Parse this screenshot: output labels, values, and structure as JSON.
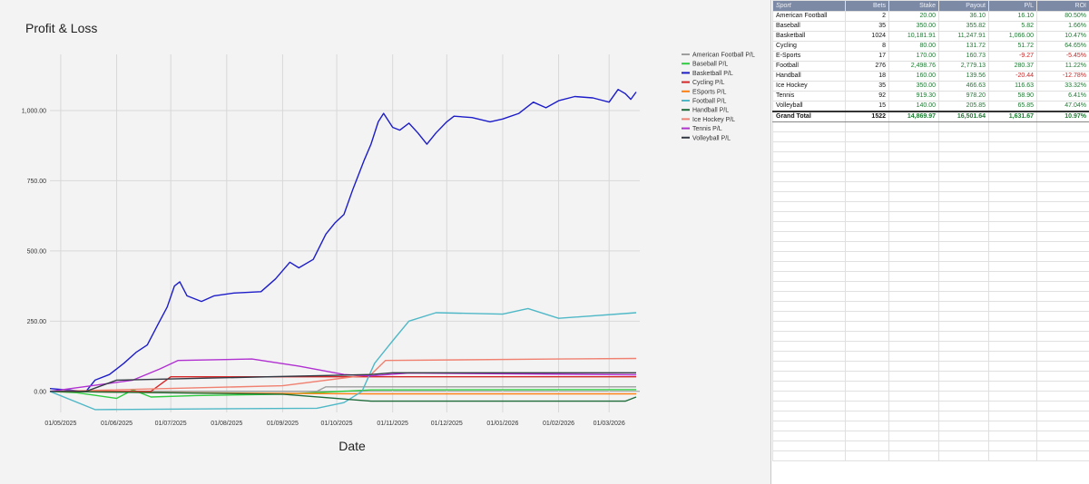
{
  "chart_data": {
    "type": "line",
    "title": "Profit & Loss",
    "xlabel": "Date",
    "ylabel": "",
    "x_start": "2025-04-25",
    "x_end": "2026-03-18",
    "ylim": [
      -75,
      1200
    ],
    "yticks": [
      0,
      250,
      500,
      750,
      1000
    ],
    "ytick_labels": [
      "0.00",
      "250.00",
      "500.00",
      "750.00",
      "1,000.00"
    ],
    "xticks": [
      "2025-05-01",
      "2025-06-01",
      "2025-07-01",
      "2025-08-01",
      "2025-09-01",
      "2025-10-01",
      "2025-11-01",
      "2025-12-01",
      "2026-01-01",
      "2026-02-01",
      "2026-03-01"
    ],
    "xtick_labels": [
      "01/05/2025",
      "01/06/2025",
      "01/07/2025",
      "01/08/2025",
      "01/09/2025",
      "01/10/2025",
      "01/11/2025",
      "01/12/2025",
      "01/01/2026",
      "01/02/2026",
      "01/03/2026"
    ],
    "grid": true,
    "legend_position": "right",
    "series": [
      {
        "name": "American Football P/L",
        "color": "#9e9e9e",
        "points": [
          [
            "2025-04-25",
            0
          ],
          [
            "2025-09-20",
            0
          ],
          [
            "2025-09-25",
            16
          ],
          [
            "2026-03-16",
            16
          ]
        ]
      },
      {
        "name": "Baseball P/L",
        "color": "#2ecc40",
        "points": [
          [
            "2025-04-25",
            0
          ],
          [
            "2025-05-10",
            -5
          ],
          [
            "2025-06-01",
            -25
          ],
          [
            "2025-06-10",
            5
          ],
          [
            "2025-06-20",
            -20
          ],
          [
            "2025-07-15",
            -15
          ],
          [
            "2025-09-01",
            -10
          ],
          [
            "2025-10-20",
            5
          ],
          [
            "2026-03-16",
            6
          ]
        ]
      },
      {
        "name": "Basketball P/L",
        "color": "#1c1cc8",
        "points": [
          [
            "2025-04-25",
            10
          ],
          [
            "2025-05-15",
            0
          ],
          [
            "2025-05-20",
            40
          ],
          [
            "2025-05-28",
            60
          ],
          [
            "2025-06-05",
            100
          ],
          [
            "2025-06-12",
            140
          ],
          [
            "2025-06-18",
            165
          ],
          [
            "2025-06-24",
            240
          ],
          [
            "2025-06-29",
            300
          ],
          [
            "2025-07-03",
            375
          ],
          [
            "2025-07-06",
            390
          ],
          [
            "2025-07-10",
            340
          ],
          [
            "2025-07-18",
            320
          ],
          [
            "2025-07-25",
            340
          ],
          [
            "2025-08-05",
            350
          ],
          [
            "2025-08-20",
            355
          ],
          [
            "2025-08-28",
            400
          ],
          [
            "2025-09-05",
            460
          ],
          [
            "2025-09-10",
            440
          ],
          [
            "2025-09-18",
            470
          ],
          [
            "2025-09-25",
            560
          ],
          [
            "2025-09-30",
            600
          ],
          [
            "2025-10-05",
            630
          ],
          [
            "2025-10-10",
            720
          ],
          [
            "2025-10-16",
            820
          ],
          [
            "2025-10-20",
            880
          ],
          [
            "2025-10-24",
            960
          ],
          [
            "2025-10-27",
            990
          ],
          [
            "2025-11-01",
            940
          ],
          [
            "2025-11-05",
            930
          ],
          [
            "2025-11-10",
            955
          ],
          [
            "2025-11-15",
            920
          ],
          [
            "2025-11-20",
            880
          ],
          [
            "2025-11-25",
            920
          ],
          [
            "2025-12-01",
            960
          ],
          [
            "2025-12-05",
            980
          ],
          [
            "2025-12-15",
            975
          ],
          [
            "2025-12-25",
            960
          ],
          [
            "2026-01-01",
            970
          ],
          [
            "2026-01-10",
            990
          ],
          [
            "2026-01-18",
            1030
          ],
          [
            "2026-01-25",
            1010
          ],
          [
            "2026-02-01",
            1035
          ],
          [
            "2026-02-10",
            1050
          ],
          [
            "2026-02-20",
            1045
          ],
          [
            "2026-03-01",
            1030
          ],
          [
            "2026-03-06",
            1075
          ],
          [
            "2026-03-10",
            1060
          ],
          [
            "2026-03-13",
            1040
          ],
          [
            "2026-03-16",
            1066
          ]
        ]
      },
      {
        "name": "Cycling P/L",
        "color": "#d62728",
        "points": [
          [
            "2025-04-25",
            0
          ],
          [
            "2025-06-20",
            0
          ],
          [
            "2025-07-01",
            52
          ],
          [
            "2026-03-16",
            52
          ]
        ]
      },
      {
        "name": "ESports P/L",
        "color": "#ff7f0e",
        "points": [
          [
            "2025-04-25",
            0
          ],
          [
            "2025-07-01",
            -5
          ],
          [
            "2025-10-20",
            -9
          ],
          [
            "2026-03-16",
            -9
          ]
        ]
      },
      {
        "name": "Football P/L",
        "color": "#4fb8c7",
        "points": [
          [
            "2025-04-25",
            0
          ],
          [
            "2025-05-20",
            -65
          ],
          [
            "2025-09-20",
            -60
          ],
          [
            "2025-10-05",
            -40
          ],
          [
            "2025-10-15",
            0
          ],
          [
            "2025-10-22",
            100
          ],
          [
            "2025-11-01",
            180
          ],
          [
            "2025-11-10",
            250
          ],
          [
            "2025-11-25",
            280
          ],
          [
            "2026-01-01",
            275
          ],
          [
            "2026-01-15",
            295
          ],
          [
            "2026-02-01",
            260
          ],
          [
            "2026-03-16",
            280
          ]
        ]
      },
      {
        "name": "Handball P/L",
        "color": "#1e6b3a",
        "points": [
          [
            "2025-04-25",
            0
          ],
          [
            "2025-09-01",
            -10
          ],
          [
            "2025-10-20",
            -35
          ],
          [
            "2026-03-10",
            -35
          ],
          [
            "2026-03-16",
            -20
          ]
        ]
      },
      {
        "name": "Ice Hockey P/L",
        "color": "#f08070",
        "points": [
          [
            "2025-04-25",
            0
          ],
          [
            "2025-09-01",
            20
          ],
          [
            "2025-10-20",
            60
          ],
          [
            "2025-10-28",
            110
          ],
          [
            "2026-02-01",
            115
          ],
          [
            "2026-03-16",
            117
          ]
        ]
      },
      {
        "name": "Tennis P/L",
        "color": "#b030d0",
        "points": [
          [
            "2025-04-25",
            0
          ],
          [
            "2025-06-10",
            40
          ],
          [
            "2025-06-25",
            80
          ],
          [
            "2025-07-05",
            110
          ],
          [
            "2025-08-15",
            115
          ],
          [
            "2025-09-10",
            90
          ],
          [
            "2025-10-05",
            60
          ],
          [
            "2025-10-20",
            55
          ],
          [
            "2025-11-10",
            65
          ],
          [
            "2026-03-16",
            59
          ]
        ]
      },
      {
        "name": "Volleyball P/L",
        "color": "#333a44",
        "points": [
          [
            "2025-04-25",
            0
          ],
          [
            "2025-05-15",
            0
          ],
          [
            "2025-06-01",
            40
          ],
          [
            "2025-10-20",
            60
          ],
          [
            "2025-11-01",
            66
          ],
          [
            "2026-03-16",
            66
          ]
        ]
      }
    ]
  },
  "table": {
    "headers": [
      "Sport",
      "Bets",
      "Stake",
      "Payout",
      "P/L",
      "ROI"
    ],
    "rows": [
      [
        "American Football",
        "2",
        "20.00",
        "36.10",
        "16.10",
        "80.50%"
      ],
      [
        "Baseball",
        "35",
        "350.00",
        "355.82",
        "5.82",
        "1.66%"
      ],
      [
        "Basketball",
        "1024",
        "10,181.91",
        "11,247.91",
        "1,066.00",
        "10.47%"
      ],
      [
        "Cycling",
        "8",
        "80.00",
        "131.72",
        "51.72",
        "64.65%"
      ],
      [
        "E-Sports",
        "17",
        "170.00",
        "160.73",
        "-9.27",
        "-5.45%"
      ],
      [
        "Football",
        "276",
        "2,498.76",
        "2,779.13",
        "280.37",
        "11.22%"
      ],
      [
        "Handball",
        "18",
        "160.00",
        "139.56",
        "-20.44",
        "-12.78%"
      ],
      [
        "Ice Hockey",
        "35",
        "350.00",
        "466.63",
        "116.63",
        "33.32%"
      ],
      [
        "Tennis",
        "92",
        "919.30",
        "978.20",
        "58.90",
        "6.41%"
      ],
      [
        "Volleyball",
        "15",
        "140.00",
        "205.85",
        "65.85",
        "47.04%"
      ]
    ],
    "total": [
      "Grand Total",
      "1522",
      "14,869.97",
      "16,501.64",
      "1,631.67",
      "10.97%"
    ]
  }
}
